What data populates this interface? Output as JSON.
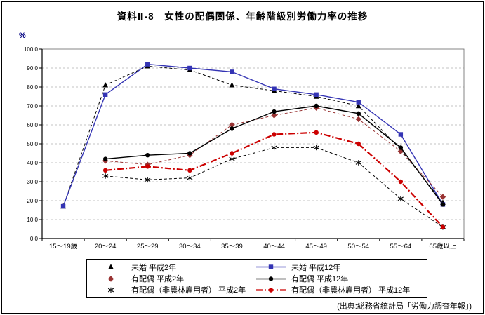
{
  "page": {
    "title": "資料Ⅱ-8　女性の配偶関係、年齢階級別労働力率の推移",
    "y_unit": "%",
    "source": "(出典:総務省統計局「労働力調査年報」)"
  },
  "chart_data": {
    "type": "line",
    "title": "資料Ⅱ-8　女性の配偶関係、年齢階級別労働力率の推移",
    "xlabel": "",
    "ylabel": "%",
    "ylim": [
      0,
      100
    ],
    "ytick_step": 10,
    "grid": true,
    "legend_position": "bottom",
    "categories": [
      "15〜19歳",
      "20〜24",
      "25〜29",
      "30〜34",
      "35〜39",
      "40〜44",
      "45〜49",
      "50〜54",
      "55〜64",
      "65歳以上"
    ],
    "series": [
      {
        "name": "未婚 平成2年",
        "color": "#000000",
        "line": "dashed",
        "marker": "triangle",
        "values": [
          17,
          81,
          91,
          89,
          81,
          78,
          75,
          70,
          47,
          19
        ]
      },
      {
        "name": "未婚 平成12年",
        "color": "#3434b4",
        "line": "solid",
        "marker": "square",
        "values": [
          17,
          76,
          92,
          90,
          88,
          79,
          76,
          72,
          55,
          18
        ]
      },
      {
        "name": "有配偶 平成2年",
        "color": "#993333",
        "line": "dashed",
        "marker": "diamond",
        "values": [
          null,
          41,
          39,
          44,
          60,
          65,
          69,
          63,
          46,
          22
        ]
      },
      {
        "name": "有配偶 平成12年",
        "color": "#000000",
        "line": "solid",
        "marker": "circle",
        "values": [
          null,
          42,
          44,
          45,
          58,
          67,
          70,
          66,
          48,
          18
        ]
      },
      {
        "name": "有配偶（非農林雇用者） 平成2年",
        "color": "#000000",
        "line": "dashed",
        "marker": "asterisk",
        "values": [
          null,
          33,
          31,
          32,
          42,
          48,
          48,
          40,
          21,
          6
        ]
      },
      {
        "name": "有配偶（非農林雇用者） 平成12年",
        "color": "#cc0000",
        "line": "dashdot",
        "marker": "circle",
        "values": [
          null,
          36,
          38,
          36,
          45,
          55,
          56,
          50,
          30,
          6
        ]
      }
    ]
  }
}
